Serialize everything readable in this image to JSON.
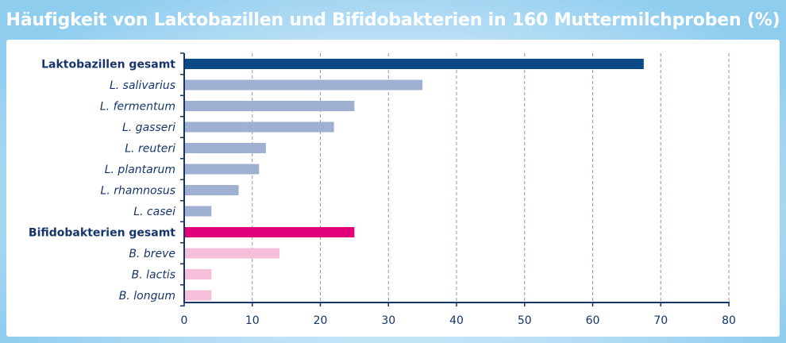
{
  "chart_data": {
    "type": "bar",
    "orientation": "horizontal",
    "title": "Häufigkeit von Laktobazillen und Bifidobakterien in 160 Muttermilchproben (%)",
    "xlabel": "",
    "ylabel": "",
    "xlim": [
      0,
      80
    ],
    "xticks": [
      0,
      10,
      20,
      30,
      40,
      50,
      60,
      70,
      80
    ],
    "grid": "vertical-dashed",
    "categories": [
      {
        "label": "Laktobazillen gesamt",
        "value": 67.5,
        "style": "bold",
        "color": "#0b4a87"
      },
      {
        "label": "L. salivarius",
        "value": 35,
        "style": "italic",
        "color": "#9fb0d2"
      },
      {
        "label": "L. fermentum",
        "value": 25,
        "style": "italic",
        "color": "#9fb0d2"
      },
      {
        "label": "L. gasseri",
        "value": 22,
        "style": "italic",
        "color": "#9fb0d2"
      },
      {
        "label": "L. reuteri",
        "value": 12,
        "style": "italic",
        "color": "#9fb0d2"
      },
      {
        "label": "L. plantarum",
        "value": 11,
        "style": "italic",
        "color": "#9fb0d2"
      },
      {
        "label": "L. rhamnosus",
        "value": 8,
        "style": "italic",
        "color": "#9fb0d2"
      },
      {
        "label": "L. casei",
        "value": 4,
        "style": "italic",
        "color": "#9fb0d2"
      },
      {
        "label": "Bifidobakterien gesamt",
        "value": 25,
        "style": "bold",
        "color": "#e2007a"
      },
      {
        "label": "B. breve",
        "value": 14,
        "style": "italic",
        "color": "#f6bfd9"
      },
      {
        "label": "B. lactis",
        "value": 4,
        "style": "italic",
        "color": "#f6bfd9"
      },
      {
        "label": "B. longum",
        "value": 4,
        "style": "italic",
        "color": "#f6bfd9"
      }
    ],
    "colors": {
      "axis": "#16356b",
      "grid": "#8a96b8",
      "title_text": "#ffffff"
    }
  }
}
